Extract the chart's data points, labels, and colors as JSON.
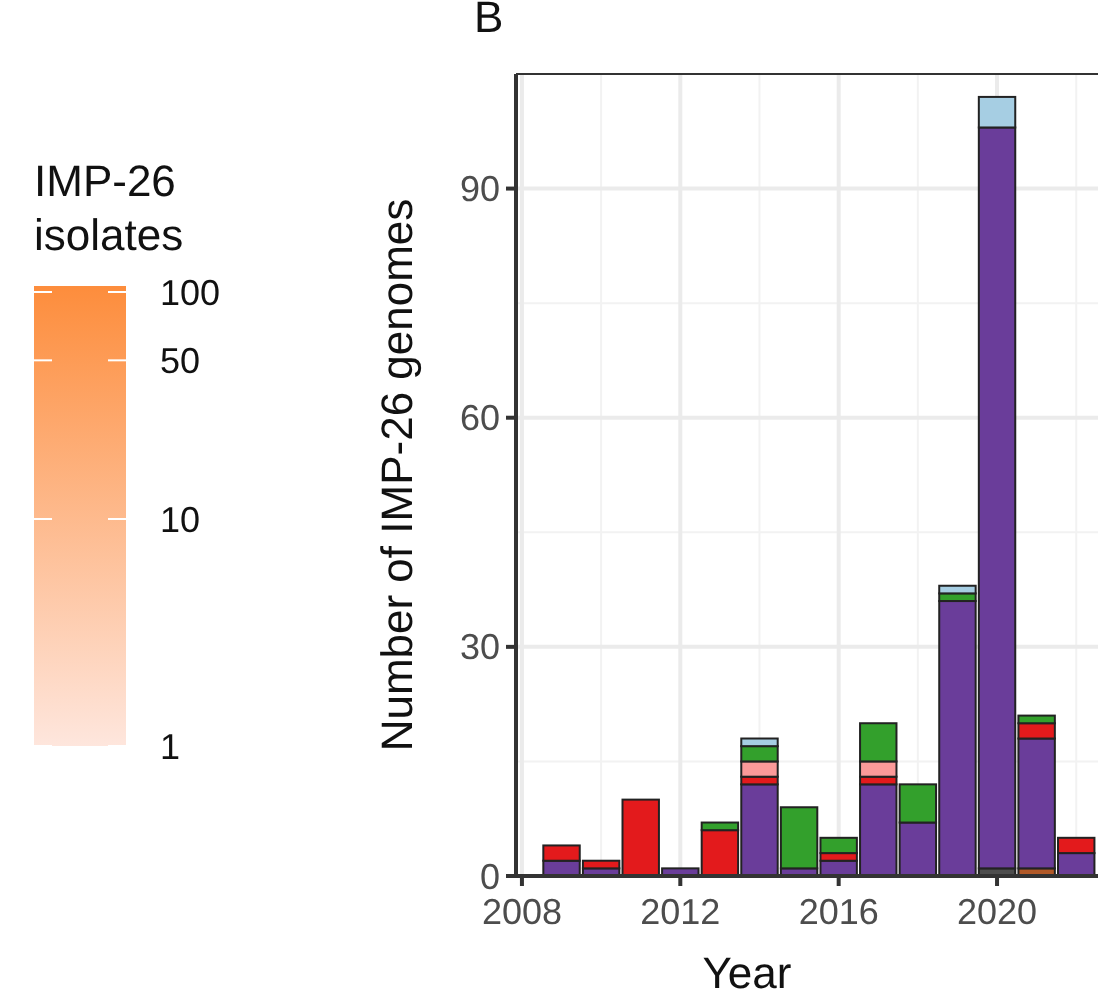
{
  "chart_data": [
    {
      "type": "other",
      "title": "IMP-26 isolates",
      "annotations": [
        "100",
        "50",
        "10",
        "1"
      ],
      "colors": [
        "#fee6dd",
        "#fd8d3c"
      ]
    },
    {
      "type": "bar",
      "stacked": true,
      "xlabel": "Year",
      "ylabel": "Number of IMP-26 genomes",
      "annotations": [
        "B"
      ],
      "x": [
        2009,
        2010,
        2011,
        2012,
        2013,
        2014,
        2015,
        2016,
        2017,
        2018,
        2019,
        2020,
        2021,
        2022
      ],
      "xlim": [
        2007.85,
        2022.55
      ],
      "xticks": [
        2008,
        2012,
        2016,
        2020
      ],
      "ylim": [
        0,
        105
      ],
      "yticks": [
        0,
        30,
        60,
        90
      ],
      "grid": true,
      "series": [
        {
          "color": "#b15928",
          "values": [
            null,
            null,
            null,
            null,
            null,
            null,
            null,
            null,
            null,
            null,
            null,
            null,
            1,
            null
          ]
        },
        {
          "color": "#4d4d4d",
          "values": [
            null,
            null,
            null,
            null,
            null,
            null,
            null,
            null,
            null,
            null,
            null,
            1,
            null,
            null
          ]
        },
        {
          "color": "#6a3d9a",
          "values": [
            2,
            1,
            null,
            1,
            null,
            12,
            1,
            2,
            12,
            7,
            36,
            97,
            17,
            3
          ]
        },
        {
          "color": "#e31a1c",
          "values": [
            2,
            1,
            10,
            null,
            6,
            1,
            null,
            1,
            1,
            null,
            null,
            null,
            2,
            2
          ]
        },
        {
          "color": "#fb9a99",
          "values": [
            null,
            null,
            null,
            null,
            null,
            2,
            null,
            null,
            2,
            null,
            null,
            null,
            null,
            null
          ]
        },
        {
          "color": "#33a02c",
          "values": [
            null,
            null,
            null,
            null,
            1,
            2,
            8,
            2,
            5,
            5,
            1,
            null,
            1,
            null
          ]
        },
        {
          "color": "#a6cee3",
          "values": [
            null,
            null,
            null,
            null,
            null,
            1,
            null,
            null,
            null,
            null,
            1,
            4,
            null,
            null
          ]
        }
      ]
    }
  ]
}
